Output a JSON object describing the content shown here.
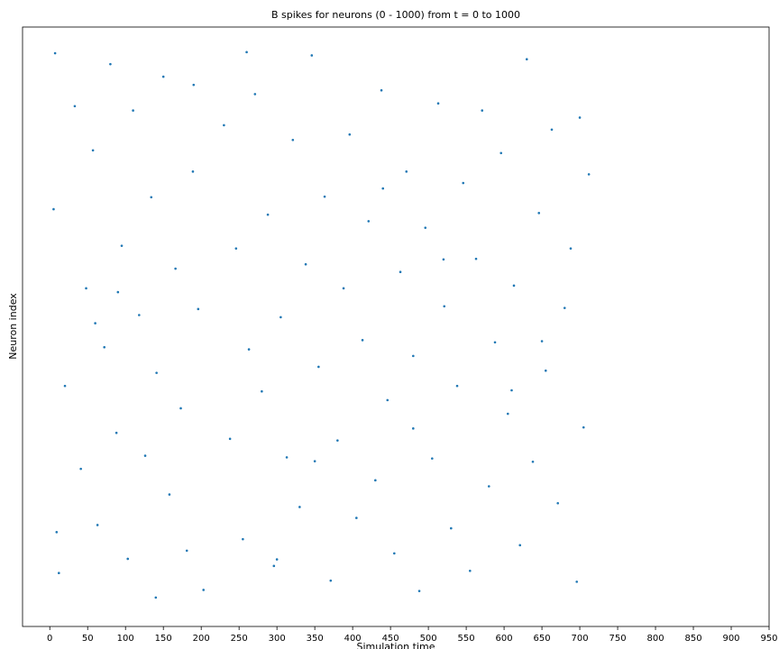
{
  "chart_data": {
    "type": "scatter",
    "title": "B spikes for neurons (0 - 1000) from t = 0 to 1000",
    "xlabel": "Simulation time",
    "ylabel": "Neuron index",
    "color": "#1f77b4",
    "xlim": [
      -36,
      950
    ],
    "ylim": [
      -53,
      1046
    ],
    "xticks": [
      0,
      50,
      100,
      150,
      200,
      250,
      300,
      350,
      400,
      450,
      500,
      550,
      600,
      650,
      700,
      750,
      800,
      850,
      900,
      950
    ],
    "x": [
      5,
      12,
      20,
      33,
      41,
      48,
      57,
      63,
      72,
      80,
      88,
      95,
      103,
      110,
      118,
      126,
      134,
      141,
      150,
      158,
      166,
      173,
      181,
      189,
      196,
      203,
      230,
      238,
      246,
      255,
      263,
      271,
      280,
      288,
      296,
      305,
      313,
      321,
      330,
      338,
      346,
      355,
      363,
      371,
      380,
      388,
      396,
      405,
      413,
      421,
      430,
      438,
      446,
      455,
      463,
      471,
      480,
      488,
      496,
      505,
      513,
      521,
      530,
      538,
      546,
      555,
      563,
      571,
      580,
      588,
      596,
      605,
      613,
      621,
      630,
      638,
      646,
      655,
      663,
      671,
      680,
      688,
      696,
      705,
      712,
      7,
      60,
      140,
      260,
      350,
      440,
      520,
      610,
      700,
      9,
      90,
      190,
      300,
      480,
      650
    ],
    "y": [
      712,
      45,
      388,
      901,
      236,
      567,
      820,
      133,
      459,
      978,
      302,
      645,
      71,
      893,
      518,
      260,
      734,
      412,
      955,
      189,
      603,
      347,
      86,
      781,
      529,
      14,
      866,
      291,
      640,
      107,
      455,
      923,
      378,
      702,
      58,
      514,
      257,
      839,
      166,
      611,
      994,
      423,
      735,
      31,
      288,
      567,
      849,
      146,
      472,
      690,
      215,
      930,
      362,
      81,
      597,
      781,
      443,
      12,
      678,
      255,
      906,
      534,
      127,
      388,
      760,
      49,
      621,
      893,
      204,
      468,
      815,
      337,
      572,
      96,
      987,
      249,
      705,
      416,
      858,
      173,
      531,
      640,
      29,
      312,
      776,
      998,
      503,
      0,
      1000,
      250,
      750,
      620,
      380,
      880,
      120,
      560,
      940,
      70,
      310,
      470
    ]
  }
}
